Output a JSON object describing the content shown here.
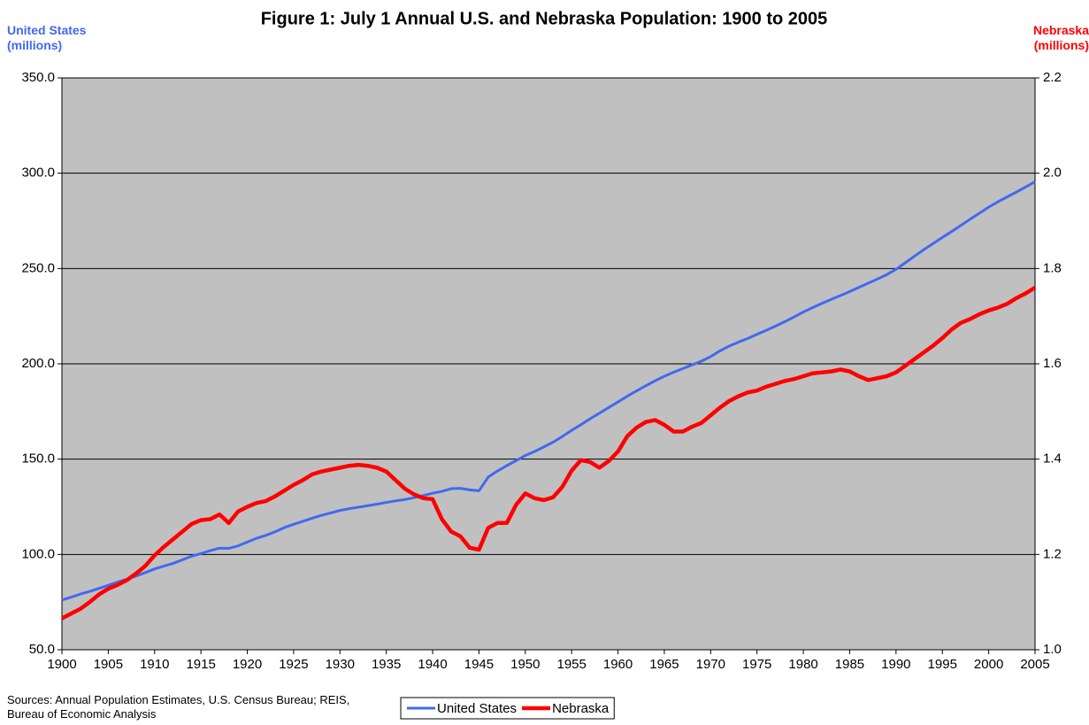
{
  "chart_data": {
    "type": "line",
    "title": "Figure 1: July 1 Annual U.S. and Nebraska Population: 1900 to 2005",
    "ylabel": "United States (millions)",
    "y2label": "Nebraska (millions)",
    "source": "Sources: Annual Population Estimates, U.S. Census Bureau; REIS, Bureau of Economic Analysis",
    "background": "#c0c0c0",
    "grid": true,
    "legend": "bottom",
    "xlim": [
      1900,
      2005
    ],
    "xticks": [
      1900,
      1905,
      1910,
      1915,
      1920,
      1925,
      1930,
      1935,
      1940,
      1945,
      1950,
      1955,
      1960,
      1965,
      1970,
      1975,
      1980,
      1985,
      1990,
      1995,
      2000,
      2005
    ],
    "ylim": [
      50,
      350
    ],
    "yticks": [
      {
        "value": 50,
        "label": "50.0"
      },
      {
        "value": 100,
        "label": "100.0"
      },
      {
        "value": 150,
        "label": "150.0"
      },
      {
        "value": 200,
        "label": "200.0"
      },
      {
        "value": 250,
        "label": "250.0"
      },
      {
        "value": 300,
        "label": "300.0"
      },
      {
        "value": 350,
        "label": "350.0"
      }
    ],
    "y2lim": [
      1.0,
      2.2
    ],
    "y2ticks": [
      {
        "value": 1,
        "label": "1.0"
      },
      1.2,
      1.4,
      1.6,
      1.8,
      {
        "value": 2,
        "label": "2.0"
      },
      2.2
    ],
    "x": [
      1900,
      1901,
      1902,
      1903,
      1904,
      1905,
      1906,
      1907,
      1908,
      1909,
      1910,
      1911,
      1912,
      1913,
      1914,
      1915,
      1916,
      1917,
      1918,
      1919,
      1920,
      1921,
      1922,
      1923,
      1924,
      1925,
      1926,
      1927,
      1928,
      1929,
      1930,
      1931,
      1932,
      1933,
      1934,
      1935,
      1936,
      1937,
      1938,
      1939,
      1940,
      1941,
      1942,
      1943,
      1944,
      1945,
      1946,
      1947,
      1948,
      1949,
      1950,
      1951,
      1952,
      1953,
      1954,
      1955,
      1956,
      1957,
      1958,
      1959,
      1960,
      1961,
      1962,
      1963,
      1964,
      1965,
      1966,
      1967,
      1968,
      1969,
      1970,
      1971,
      1972,
      1973,
      1974,
      1975,
      1976,
      1977,
      1978,
      1979,
      1980,
      1981,
      1982,
      1983,
      1984,
      1985,
      1986,
      1987,
      1988,
      1989,
      1990,
      1991,
      1992,
      1993,
      1994,
      1995,
      1996,
      1997,
      1998,
      1999,
      2000,
      2001,
      2002,
      2003,
      2004,
      2005
    ],
    "series": [
      {
        "name": "United States",
        "color": "#4169f0",
        "values": [
          76.1,
          77.6,
          79.2,
          80.6,
          82.2,
          83.8,
          85.5,
          87.0,
          88.7,
          90.5,
          92.4,
          93.9,
          95.3,
          97.2,
          99.1,
          100.5,
          102.0,
          103.3,
          103.2,
          104.5,
          106.5,
          108.5,
          110.0,
          111.9,
          114.1,
          115.8,
          117.4,
          119.0,
          120.5,
          121.8,
          123.1,
          124.0,
          124.8,
          125.6,
          126.4,
          127.3,
          128.1,
          128.8,
          129.8,
          130.9,
          132.1,
          133.1,
          134.5,
          134.7,
          133.9,
          133.4,
          140.6,
          143.8,
          146.6,
          149.2,
          151.9,
          154.0,
          156.4,
          158.9,
          161.9,
          165.1,
          168.1,
          171.2,
          174.1,
          177.1,
          180.0,
          183.0,
          185.8,
          188.5,
          191.1,
          193.5,
          195.6,
          197.5,
          199.4,
          201.4,
          203.8,
          206.8,
          209.3,
          211.4,
          213.3,
          215.5,
          217.6,
          219.8,
          222.1,
          224.6,
          227.2,
          229.5,
          231.7,
          233.8,
          235.8,
          237.9,
          240.1,
          242.3,
          244.5,
          246.8,
          249.6,
          253.0,
          256.5,
          259.9,
          263.1,
          266.3,
          269.4,
          272.6,
          275.9,
          279.0,
          282.2,
          285.0,
          287.6,
          290.1,
          292.8,
          295.5
        ]
      },
      {
        "name": "Nebraska",
        "color": "#ff0000",
        "axis": "y2",
        "values": [
          1.066,
          1.076,
          1.086,
          1.1,
          1.116,
          1.128,
          1.136,
          1.146,
          1.16,
          1.176,
          1.198,
          1.216,
          1.232,
          1.248,
          1.264,
          1.272,
          1.274,
          1.284,
          1.266,
          1.29,
          1.3,
          1.308,
          1.312,
          1.322,
          1.334,
          1.346,
          1.356,
          1.368,
          1.374,
          1.378,
          1.382,
          1.386,
          1.388,
          1.386,
          1.382,
          1.374,
          1.356,
          1.338,
          1.326,
          1.318,
          1.316,
          1.274,
          1.248,
          1.238,
          1.214,
          1.21,
          1.256,
          1.266,
          1.266,
          1.304,
          1.328,
          1.318,
          1.314,
          1.32,
          1.342,
          1.376,
          1.398,
          1.394,
          1.382,
          1.396,
          1.416,
          1.448,
          1.466,
          1.478,
          1.482,
          1.472,
          1.458,
          1.458,
          1.468,
          1.476,
          1.492,
          1.508,
          1.522,
          1.532,
          1.54,
          1.544,
          1.552,
          1.558,
          1.564,
          1.568,
          1.574,
          1.58,
          1.582,
          1.584,
          1.588,
          1.584,
          1.574,
          1.566,
          1.57,
          1.574,
          1.582,
          1.596,
          1.61,
          1.624,
          1.638,
          1.654,
          1.672,
          1.686,
          1.694,
          1.704,
          1.712,
          1.718,
          1.726,
          1.738,
          1.748,
          1.76
        ]
      }
    ]
  }
}
